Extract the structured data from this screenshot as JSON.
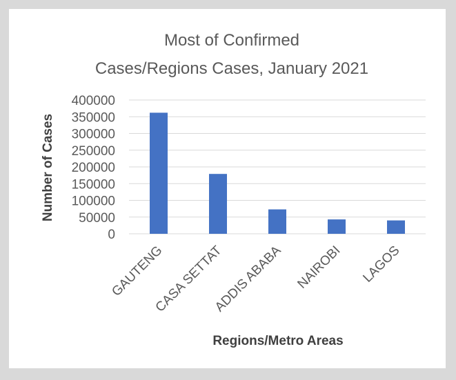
{
  "chart_data": {
    "type": "bar",
    "title_lines": [
      "Most of Confirmed",
      "Cases/Regions Cases, January 2021"
    ],
    "xlabel": "Regions/Metro Areas",
    "ylabel": "Number of Cases",
    "categories": [
      "GAUTENG",
      "CASA SETTAT",
      "ADDIS ABABA",
      "NAIROBI",
      "LAGOS"
    ],
    "values": [
      362000,
      179000,
      73000,
      43000,
      40000
    ],
    "ylim": [
      0,
      400000
    ],
    "yticks": [
      "0",
      "50000",
      "100000",
      "150000",
      "200000",
      "250000",
      "300000",
      "350000",
      "400000"
    ],
    "grid": true,
    "legend": "none",
    "bar_color": "#4472c4",
    "grid_color": "#d9d9d9"
  }
}
